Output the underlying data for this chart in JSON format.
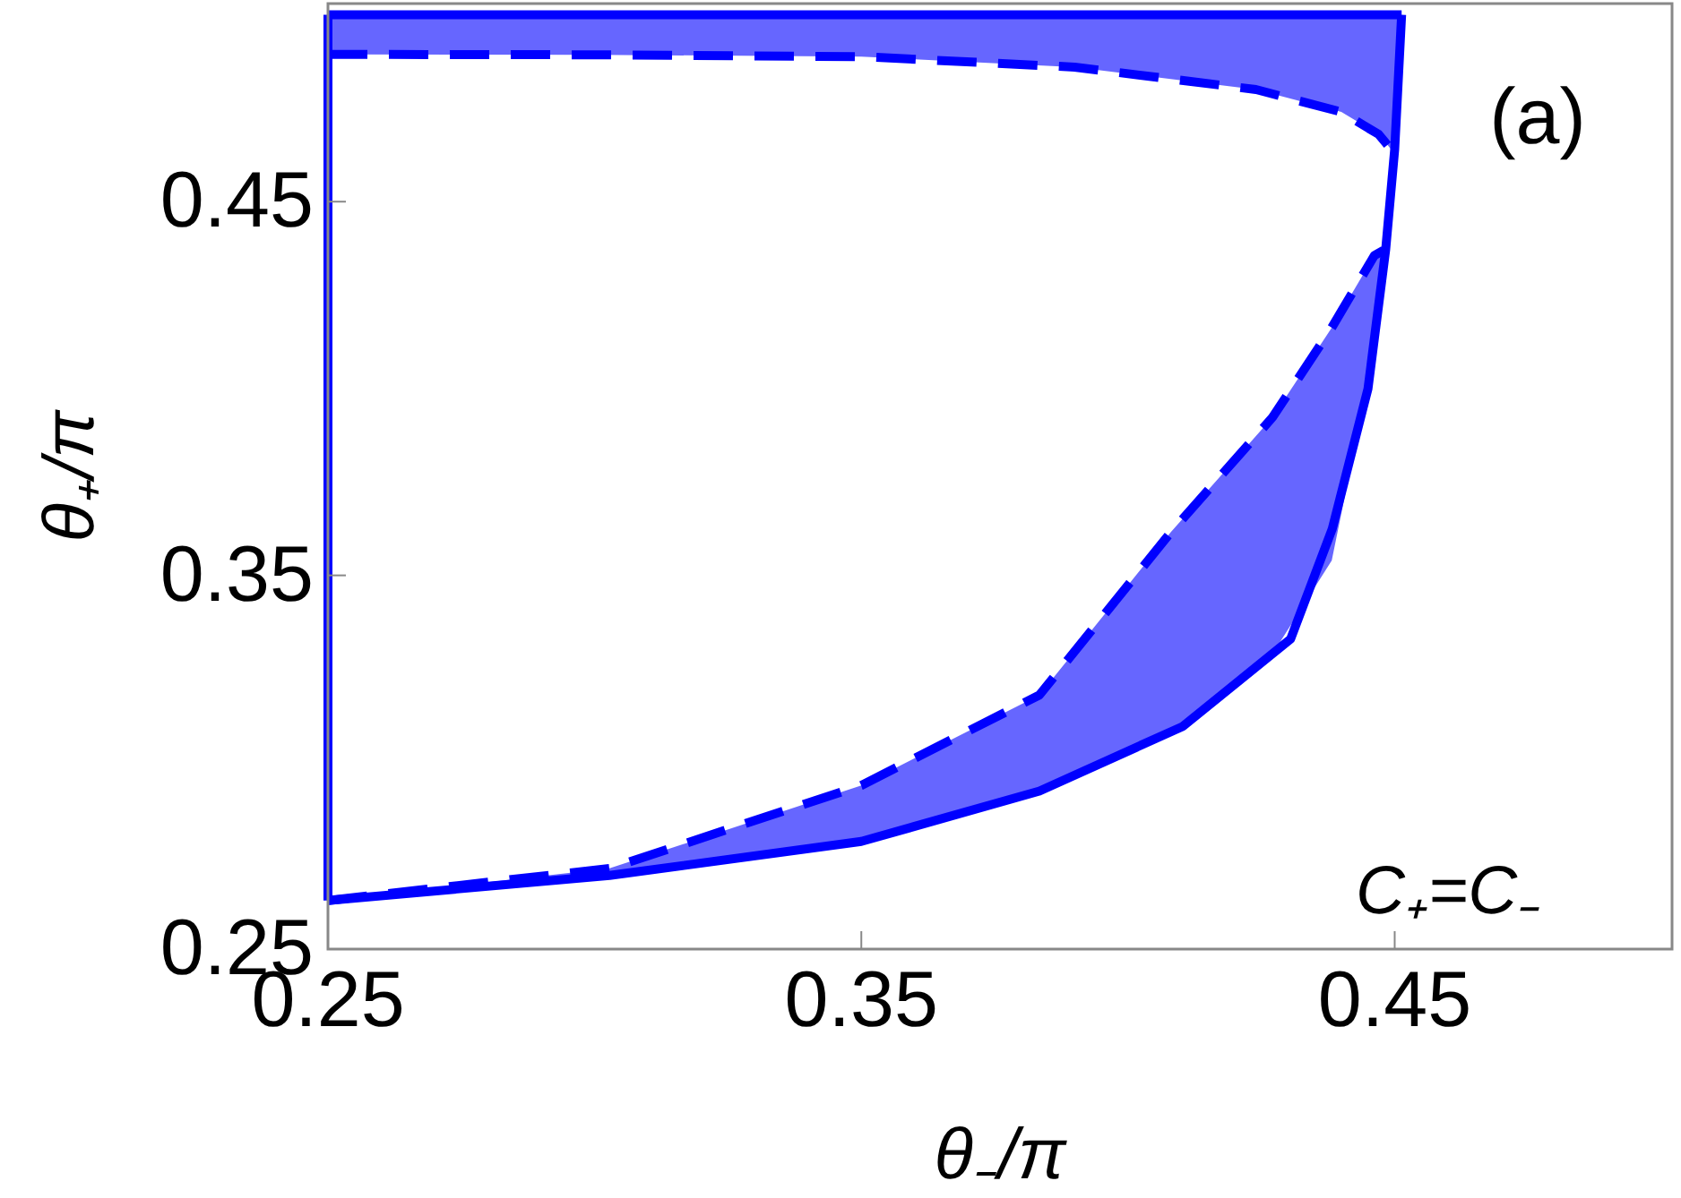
{
  "chart_data": {
    "type": "line",
    "xlabel": "θ₋/π",
    "ylabel": "θ₊/π",
    "xlim": [
      0.25,
      0.502
    ],
    "ylim": [
      0.25,
      0.503
    ],
    "xticks": [
      0.25,
      0.35,
      0.45
    ],
    "yticks": [
      0.25,
      0.35,
      0.45
    ],
    "grid": false,
    "series": [
      {
        "color": "#0000ff",
        "line_style": "dashed",
        "x": [
          0.25,
          0.3028,
          0.35,
          0.3834,
          0.408,
          0.4271,
          0.4382,
          0.4462,
          0.4479
        ],
        "values": [
          0.263,
          0.2716,
          0.2938,
          0.318,
          0.3615,
          0.3923,
          0.4163,
          0.4356,
          0.437
        ],
        "lower": [
          0.263,
          0.2697,
          0.2788,
          0.2923,
          0.307,
          0.329,
          0.354,
          0.41,
          0.432
        ],
        "upper": [
          0.263,
          0.2716,
          0.2938,
          0.318,
          0.3615,
          0.3923,
          0.4163,
          0.4356,
          0.437
        ]
      },
      {
        "color": "#0000ff",
        "line_style": "dashed",
        "x": [
          0.25,
          0.3,
          0.35,
          0.39,
          0.424,
          0.44,
          0.447,
          0.4505
        ],
        "values": [
          0.4894,
          0.4893,
          0.4888,
          0.486,
          0.48,
          0.474,
          0.468,
          0.462
        ],
        "lower": [
          0.4894,
          0.4893,
          0.4888,
          0.486,
          0.48,
          0.474,
          0.468,
          0.462
        ],
        "upper": [
          0.5,
          0.5,
          0.5,
          0.5,
          0.5,
          0.5,
          0.5,
          0.5
        ]
      },
      {
        "color": "#0000ff",
        "line_style": "solid",
        "x": [
          0.25,
          0.3028,
          0.35,
          0.3834,
          0.4103,
          0.4305,
          0.4383,
          0.445,
          0.4483,
          0.45,
          0.4513
        ],
        "values": [
          0.263,
          0.2697,
          0.2788,
          0.2923,
          0.3096,
          0.333,
          0.3625,
          0.4,
          0.437,
          0.464,
          0.5
        ]
      },
      {
        "color": "#0000ff",
        "line_style": "solid",
        "x": [
          0.25,
          0.4513
        ],
        "values": [
          0.5,
          0.5
        ]
      },
      {
        "color": "#0000ff",
        "line_style": "solid",
        "x": [
          0.25,
          0.25
        ],
        "values": [
          0.263,
          0.5
        ]
      }
    ],
    "annotations": [
      "(a)",
      "C₊=C₋"
    ]
  }
}
